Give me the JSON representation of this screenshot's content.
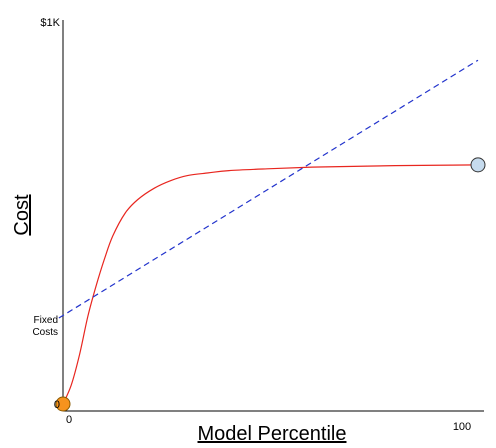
{
  "chart_data": {
    "type": "line",
    "xlabel": "Model Percentile",
    "ylabel": "Cost",
    "xlim": [
      0,
      100
    ],
    "ylim": [
      0,
      1000
    ],
    "x_tick_labels": [
      {
        "value": 0,
        "label": "0"
      },
      {
        "value": 100,
        "label": "100"
      }
    ],
    "y_tick_labels": [
      {
        "value": 0,
        "label": "0"
      },
      {
        "value": 1000,
        "label": "$1K"
      }
    ],
    "annotations": [
      {
        "text_lines": [
          "Fixed",
          "Costs"
        ],
        "value": 235
      }
    ],
    "grid": false,
    "series": [
      {
        "kind": "curve",
        "style": "solid",
        "color": "#e8261f",
        "x": [
          0,
          2,
          4,
          6,
          8,
          10,
          12,
          15,
          18,
          22,
          26,
          30,
          35,
          40,
          50,
          60,
          70,
          80,
          90,
          100
        ],
        "y": [
          0,
          50,
          130,
          230,
          310,
          380,
          440,
          500,
          535,
          565,
          585,
          598,
          605,
          611,
          616,
          620,
          622,
          624,
          625,
          626
        ]
      },
      {
        "kind": "line",
        "style": "dashed",
        "color": "#2233cc",
        "x": [
          -1,
          100
        ],
        "y": [
          225,
          900
        ]
      }
    ],
    "markers": [
      {
        "x": 0,
        "y": 0,
        "color": "#f7931e",
        "stroke": "#8a5a00"
      },
      {
        "x": 100,
        "y": 626,
        "color": "#c6dbee",
        "stroke": "#333333"
      }
    ]
  }
}
